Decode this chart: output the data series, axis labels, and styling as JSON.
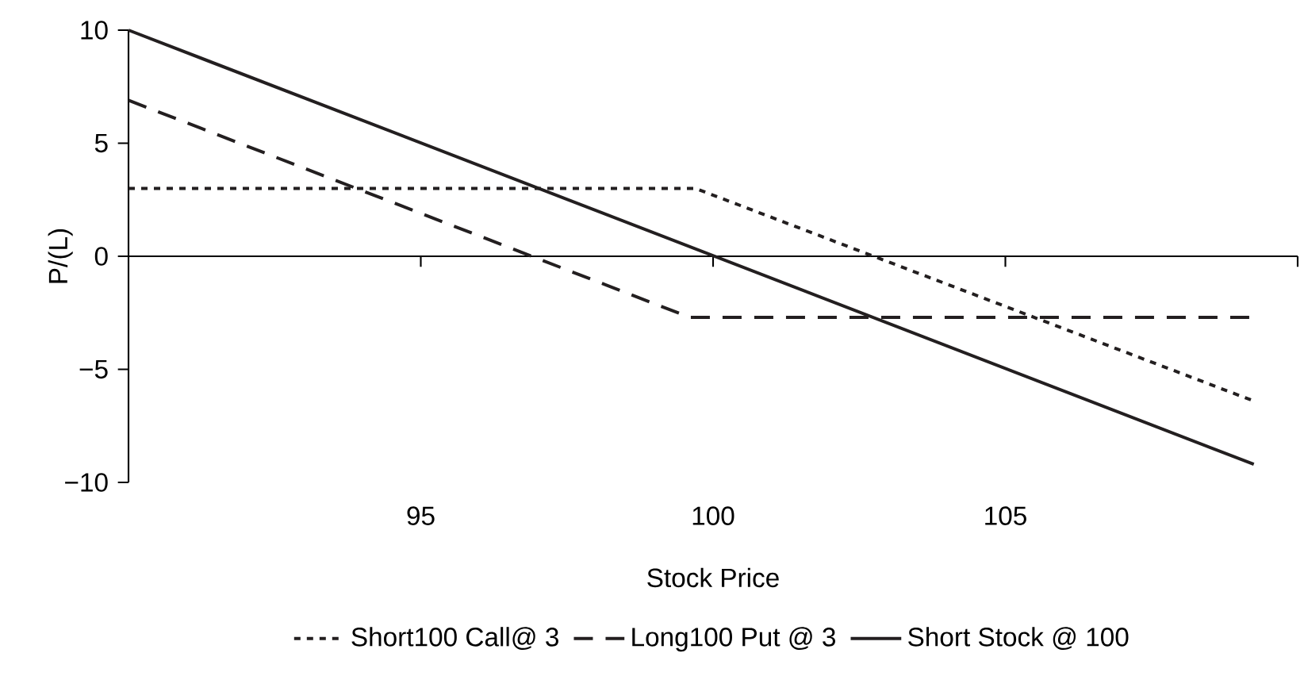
{
  "chart_data": {
    "type": "line",
    "xlabel": "Stock Price",
    "ylabel": "P/(L)",
    "xlim": [
      90,
      110
    ],
    "xticks": [
      95,
      100,
      105,
      {
        "value": 110,
        "label": null
      }
    ],
    "ylim": [
      -10,
      10
    ],
    "yticks": [
      {
        "value": -10,
        "label": "−10"
      },
      {
        "value": -5,
        "label": "−5"
      },
      0,
      5,
      10
    ],
    "legend": "bottom",
    "marker": "none",
    "series": [
      {
        "name": "Short100 Call@ 3",
        "color": "#231f20",
        "line_style": "dotted",
        "x": [
          90,
          99.7,
          109.25
        ],
        "values": [
          3,
          3,
          -6.4
        ]
      },
      {
        "name": "Long100 Put @ 3",
        "color": "#231f20",
        "line_style": "dashed",
        "x": [
          90,
          99.6,
          109.25
        ],
        "values": [
          6.9,
          -2.7,
          -2.7
        ]
      },
      {
        "name": "Short Stock @ 100",
        "color": "#231f20",
        "line_style": "solid",
        "x": [
          90,
          109.25
        ],
        "values": [
          10,
          -9.2
        ]
      }
    ]
  }
}
